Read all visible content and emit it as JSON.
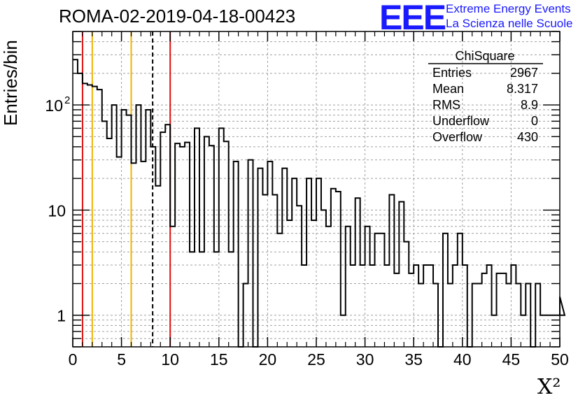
{
  "header": {
    "title": "ROMA-02-2019-04-18-00423",
    "logo_text": "EEE",
    "logo_line1": "Extreme Energy Events",
    "logo_line2": "La Scienza nelle Scuole",
    "logo_color": "#1a1aff"
  },
  "stats": {
    "title": "ChiSquare",
    "rows": [
      {
        "label": "Entries",
        "value": "2967"
      },
      {
        "label": "Mean",
        "value": "8.317"
      },
      {
        "label": "RMS",
        "value": "8.9"
      },
      {
        "label": "Underflow",
        "value": "0"
      },
      {
        "label": "Overflow",
        "value": "430"
      }
    ]
  },
  "chart_data": {
    "type": "bar",
    "histogram": "step",
    "xlabel": "X²",
    "ylabel": "Entries/bin",
    "xlim": [
      0,
      50
    ],
    "ylim": [
      0.5,
      500
    ],
    "yscale": "log",
    "grid": true,
    "bin_width": 0.5,
    "x_ticks": [
      "0",
      "5",
      "10",
      "15",
      "20",
      "25",
      "30",
      "35",
      "40",
      "45",
      "50"
    ],
    "y_ticks": [
      {
        "value": 1,
        "label": "1"
      },
      {
        "value": 10,
        "label": "10"
      },
      {
        "value": 100,
        "label": "10",
        "exponent": "2"
      }
    ],
    "bin_values": [
      270,
      200,
      160,
      155,
      150,
      140,
      70,
      48,
      100,
      32,
      90,
      80,
      28,
      100,
      29,
      90,
      40,
      17,
      55,
      65,
      7,
      43,
      40,
      44,
      4,
      60,
      4,
      50,
      41,
      4,
      60,
      45,
      4,
      29,
      0,
      2,
      30,
      0,
      25,
      14,
      29,
      14,
      6,
      25,
      8,
      20,
      11,
      3,
      20,
      8,
      20,
      10,
      7,
      16,
      15,
      1,
      7,
      3,
      13,
      3,
      7,
      3,
      6,
      6,
      3,
      14,
      2.5,
      12,
      5,
      2.5,
      3,
      2,
      3,
      3,
      2,
      0,
      6,
      2,
      3,
      6,
      3,
      0,
      2,
      2,
      2.5,
      3,
      1,
      2.5,
      2.5,
      2,
      3,
      2,
      1,
      2,
      0.5,
      2,
      1,
      1,
      1,
      1,
      1.5,
      1
    ],
    "vlines": [
      {
        "x": 1,
        "color": "#e01010",
        "style": "solid"
      },
      {
        "x": 2,
        "color": "#f0b400",
        "style": "solid"
      },
      {
        "x": 6,
        "color": "#f0b400",
        "style": "solid"
      },
      {
        "x": 8.2,
        "color": "#000000",
        "style": "dashed"
      },
      {
        "x": 10,
        "color": "#e01010",
        "style": "solid"
      }
    ]
  }
}
